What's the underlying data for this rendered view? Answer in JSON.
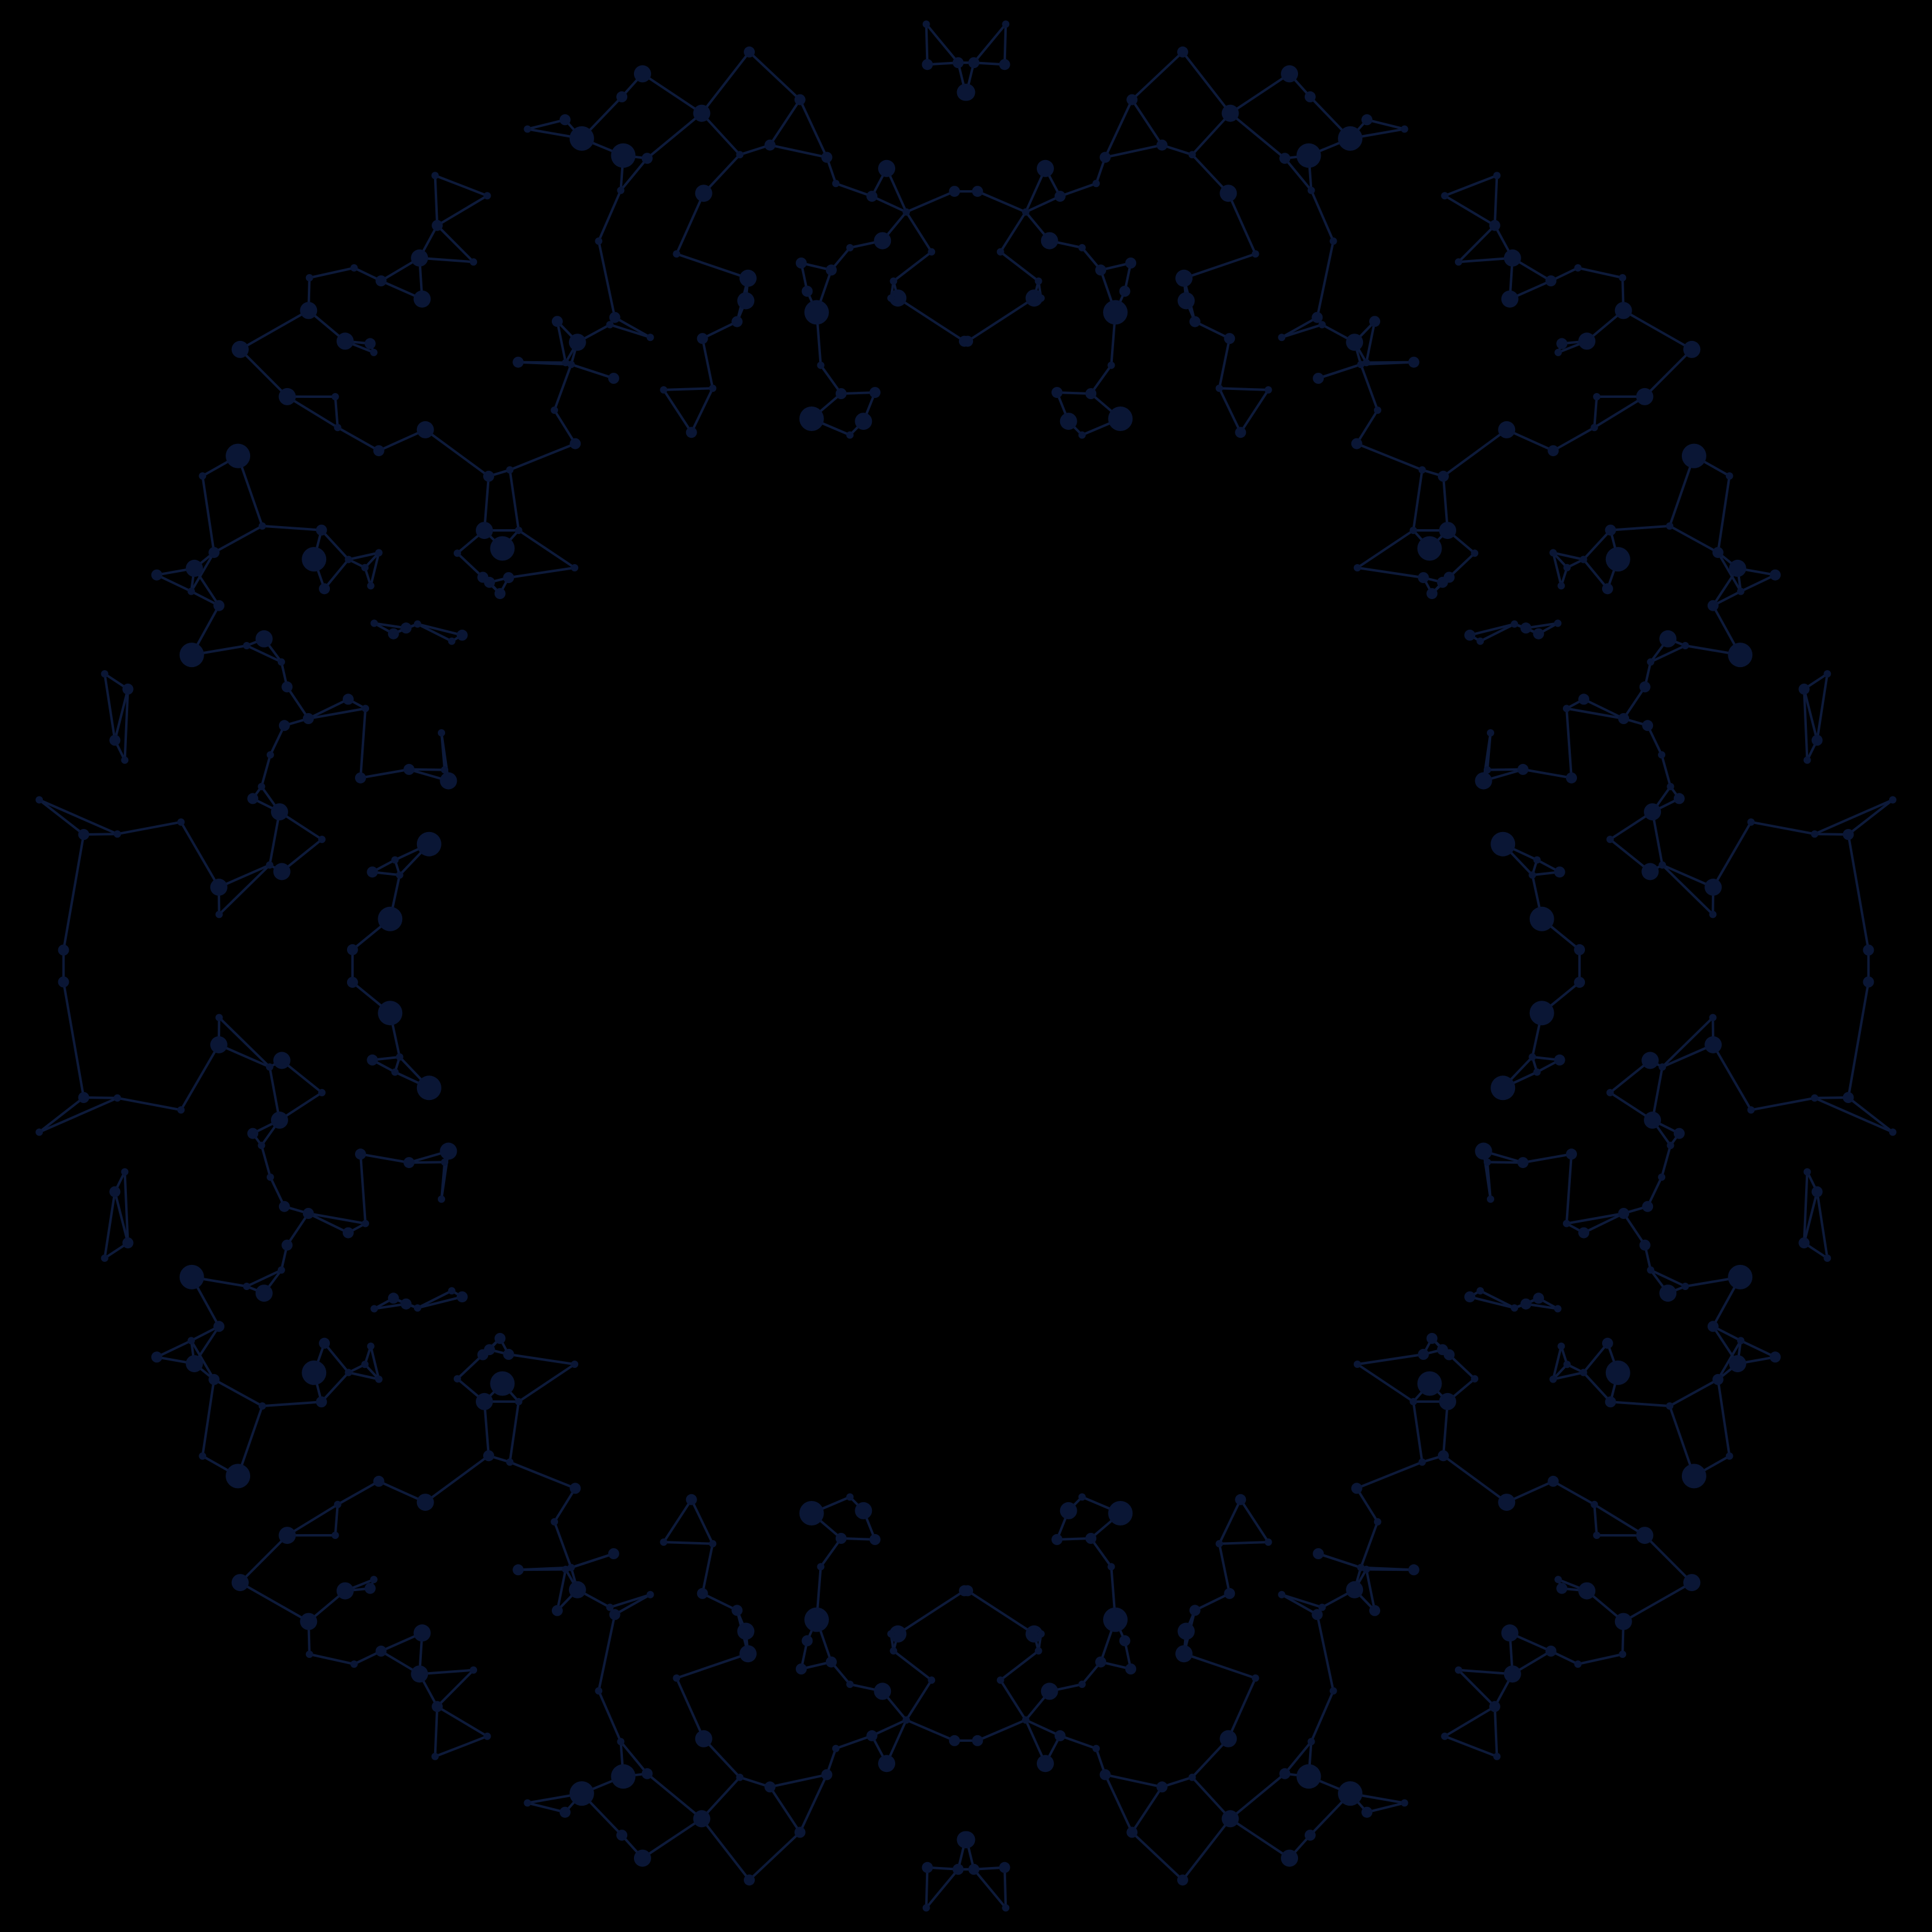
{
  "artwork": {
    "kind": "molecular-network-ring",
    "colors": {
      "background": "#000000",
      "node": "#0a1635",
      "edge": "#0d1a3a"
    },
    "symmetry": "mirrored-quadrants"
  }
}
